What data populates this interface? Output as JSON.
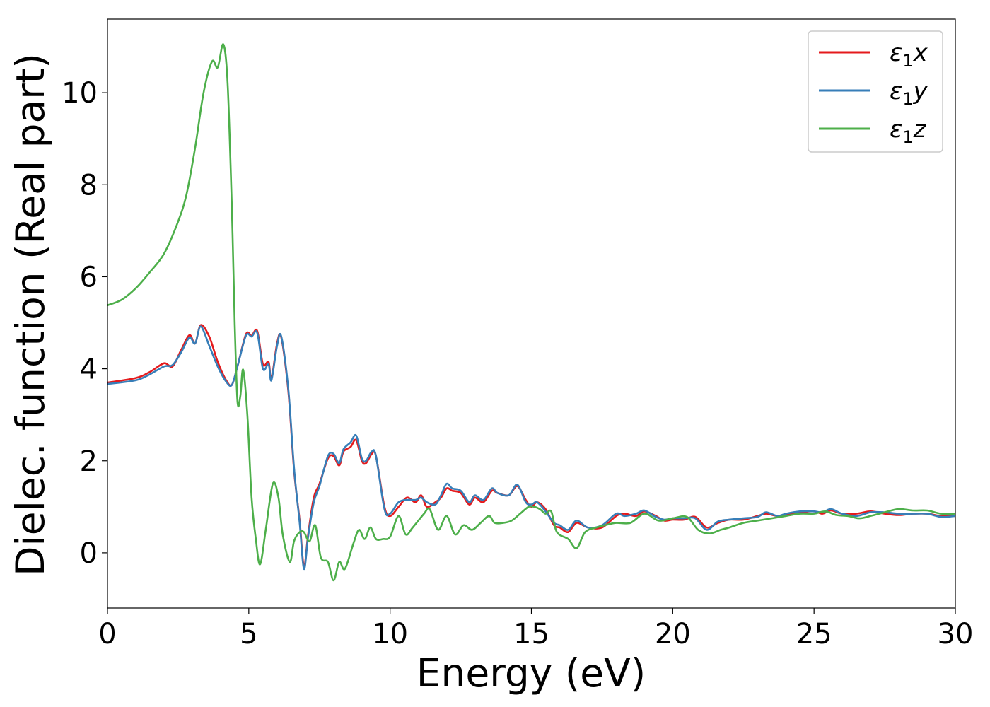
{
  "chart_data": {
    "type": "line",
    "title": "",
    "xlabel": "Energy (eV)",
    "ylabel": "Dielec. function (Real part)",
    "xlim": [
      0,
      30
    ],
    "ylim": [
      -1.2,
      11.6
    ],
    "xticks": [
      0,
      5,
      10,
      15,
      20,
      25,
      30
    ],
    "yticks": [
      0,
      2,
      4,
      6,
      8,
      10
    ],
    "grid": false,
    "legend_position": "top-right",
    "series": [
      {
        "name": "ε1x",
        "legend": {
          "base": "ε",
          "sub": "1",
          "suffix": "x"
        },
        "color": "#e41a1c",
        "x": [
          0,
          1,
          1.5,
          2,
          2.3,
          2.6,
          2.9,
          3.1,
          3.3,
          3.6,
          3.9,
          4.2,
          4.4,
          4.6,
          4.9,
          5.1,
          5.3,
          5.5,
          5.7,
          5.8,
          6.0,
          6.15,
          6.4,
          6.6,
          6.8,
          6.95,
          7.1,
          7.3,
          7.5,
          7.8,
          8.0,
          8.2,
          8.35,
          8.6,
          8.8,
          9.0,
          9.15,
          9.35,
          9.5,
          9.8,
          10.0,
          10.3,
          10.6,
          10.9,
          11.1,
          11.3,
          11.6,
          11.8,
          12.0,
          12.2,
          12.5,
          12.8,
          13.0,
          13.3,
          13.6,
          13.8,
          14.2,
          14.5,
          14.8,
          15.0,
          15.2,
          15.5,
          15.8,
          16.0,
          16.3,
          16.6,
          17.0,
          17.5,
          18.0,
          18.3,
          18.7,
          19.0,
          19.4,
          19.7,
          20.0,
          20.4,
          20.8,
          21.2,
          21.6,
          22.0,
          22.5,
          23.0,
          23.3,
          23.7,
          24.0,
          24.5,
          25.0,
          25.3,
          25.6,
          26.0,
          26.5,
          27.0,
          27.5,
          28.0,
          28.5,
          29.0,
          29.5,
          30.0
        ],
        "values": [
          3.7,
          3.8,
          3.93,
          4.12,
          4.05,
          4.4,
          4.73,
          4.55,
          4.95,
          4.7,
          4.15,
          3.75,
          3.65,
          4.05,
          4.75,
          4.72,
          4.82,
          4.1,
          4.15,
          3.78,
          4.55,
          4.68,
          3.5,
          1.8,
          0.7,
          -0.3,
          0.4,
          1.2,
          1.5,
          2.05,
          2.1,
          1.9,
          2.2,
          2.3,
          2.45,
          2.0,
          1.95,
          2.15,
          2.1,
          1.0,
          0.8,
          1.0,
          1.2,
          1.1,
          1.25,
          1.0,
          1.1,
          1.2,
          1.4,
          1.35,
          1.3,
          1.05,
          1.2,
          1.1,
          1.35,
          1.3,
          1.25,
          1.45,
          1.15,
          1.0,
          1.1,
          0.95,
          0.6,
          0.55,
          0.45,
          0.65,
          0.55,
          0.55,
          0.8,
          0.85,
          0.8,
          0.9,
          0.8,
          0.7,
          0.72,
          0.72,
          0.78,
          0.55,
          0.65,
          0.72,
          0.72,
          0.8,
          0.85,
          0.8,
          0.82,
          0.88,
          0.9,
          0.85,
          0.92,
          0.85,
          0.85,
          0.9,
          0.85,
          0.82,
          0.85,
          0.85,
          0.8,
          0.8
        ]
      },
      {
        "name": "ε1y",
        "legend": {
          "base": "ε",
          "sub": "1",
          "suffix": "y"
        },
        "color": "#377eb8",
        "x": [
          0,
          1,
          1.5,
          2,
          2.3,
          2.6,
          2.9,
          3.1,
          3.3,
          3.6,
          3.9,
          4.2,
          4.4,
          4.6,
          4.9,
          5.1,
          5.3,
          5.5,
          5.7,
          5.8,
          6.0,
          6.15,
          6.4,
          6.6,
          6.8,
          6.95,
          7.1,
          7.3,
          7.5,
          7.8,
          8.0,
          8.2,
          8.35,
          8.6,
          8.8,
          9.0,
          9.15,
          9.35,
          9.5,
          9.8,
          10.0,
          10.3,
          10.6,
          10.9,
          11.1,
          11.3,
          11.6,
          11.8,
          12.0,
          12.2,
          12.5,
          12.8,
          13.0,
          13.3,
          13.6,
          13.8,
          14.2,
          14.5,
          14.8,
          15.0,
          15.2,
          15.5,
          15.8,
          16.0,
          16.3,
          16.6,
          17.0,
          17.5,
          18.0,
          18.3,
          18.7,
          19.0,
          19.4,
          19.7,
          20.0,
          20.4,
          20.8,
          21.2,
          21.6,
          22.0,
          22.5,
          23.0,
          23.3,
          23.7,
          24.0,
          24.5,
          25.0,
          25.3,
          25.6,
          26.0,
          26.5,
          27.0,
          27.5,
          28.0,
          28.5,
          29.0,
          29.5,
          30.0
        ],
        "values": [
          3.67,
          3.75,
          3.88,
          4.05,
          4.08,
          4.35,
          4.68,
          4.55,
          4.92,
          4.5,
          4.05,
          3.72,
          3.65,
          4.05,
          4.72,
          4.7,
          4.78,
          4.0,
          4.1,
          3.75,
          4.5,
          4.7,
          3.55,
          1.85,
          0.65,
          -0.35,
          0.35,
          1.1,
          1.45,
          2.1,
          2.15,
          1.95,
          2.25,
          2.4,
          2.55,
          2.05,
          2.0,
          2.2,
          2.1,
          0.95,
          0.85,
          1.1,
          1.15,
          1.15,
          1.2,
          1.1,
          1.05,
          1.25,
          1.5,
          1.4,
          1.35,
          1.1,
          1.25,
          1.15,
          1.4,
          1.3,
          1.25,
          1.48,
          1.1,
          1.05,
          1.1,
          0.9,
          0.65,
          0.6,
          0.5,
          0.7,
          0.55,
          0.6,
          0.85,
          0.8,
          0.85,
          0.92,
          0.78,
          0.72,
          0.75,
          0.75,
          0.75,
          0.5,
          0.68,
          0.72,
          0.75,
          0.78,
          0.88,
          0.8,
          0.85,
          0.9,
          0.9,
          0.88,
          0.95,
          0.85,
          0.8,
          0.88,
          0.88,
          0.85,
          0.85,
          0.85,
          0.78,
          0.8
        ]
      },
      {
        "name": "ε1z",
        "legend": {
          "base": "ε",
          "sub": "1",
          "suffix": "z"
        },
        "color": "#4daf4a",
        "x": [
          0,
          0.5,
          1,
          1.5,
          2,
          2.5,
          2.8,
          3.1,
          3.4,
          3.7,
          3.9,
          4.1,
          4.25,
          4.4,
          4.5,
          4.6,
          4.7,
          4.8,
          4.95,
          5.1,
          5.25,
          5.4,
          5.6,
          5.85,
          6.05,
          6.2,
          6.45,
          6.6,
          6.8,
          6.95,
          7.15,
          7.35,
          7.55,
          7.8,
          8.0,
          8.2,
          8.4,
          8.7,
          8.9,
          9.1,
          9.3,
          9.5,
          9.75,
          10.0,
          10.3,
          10.55,
          10.8,
          11.2,
          11.4,
          11.7,
          12.0,
          12.3,
          12.6,
          12.9,
          13.2,
          13.5,
          13.7,
          14.0,
          14.3,
          14.6,
          14.9,
          15.1,
          15.3,
          15.5,
          15.7,
          15.9,
          16.3,
          16.6,
          16.9,
          17.3,
          17.6,
          18.0,
          18.5,
          19.0,
          19.5,
          20.0,
          20.5,
          20.9,
          21.3,
          21.7,
          22.0,
          22.5,
          23.0,
          23.5,
          24.0,
          24.5,
          25.0,
          25.4,
          25.8,
          26.2,
          26.6,
          27.0,
          27.5,
          28.0,
          28.5,
          29.0,
          29.5,
          30.0
        ],
        "values": [
          5.38,
          5.5,
          5.75,
          6.1,
          6.5,
          7.2,
          7.8,
          8.8,
          10.0,
          10.68,
          10.55,
          11.05,
          10.2,
          7.5,
          5.0,
          3.3,
          3.4,
          3.98,
          3.0,
          1.2,
          0.3,
          -0.25,
          0.5,
          1.5,
          1.2,
          0.4,
          -0.2,
          0.25,
          0.45,
          0.45,
          0.25,
          0.6,
          -0.1,
          -0.2,
          -0.6,
          -0.2,
          -0.35,
          0.2,
          0.5,
          0.3,
          0.55,
          0.3,
          0.3,
          0.35,
          0.8,
          0.4,
          0.55,
          0.85,
          0.95,
          0.5,
          0.8,
          0.4,
          0.6,
          0.5,
          0.65,
          0.8,
          0.65,
          0.65,
          0.7,
          0.85,
          1.0,
          1.0,
          0.95,
          0.85,
          0.9,
          0.45,
          0.3,
          0.1,
          0.45,
          0.55,
          0.6,
          0.65,
          0.65,
          0.85,
          0.7,
          0.75,
          0.78,
          0.5,
          0.42,
          0.5,
          0.55,
          0.65,
          0.7,
          0.75,
          0.8,
          0.85,
          0.85,
          0.9,
          0.82,
          0.8,
          0.75,
          0.8,
          0.88,
          0.95,
          0.92,
          0.92,
          0.85,
          0.85
        ]
      }
    ]
  }
}
